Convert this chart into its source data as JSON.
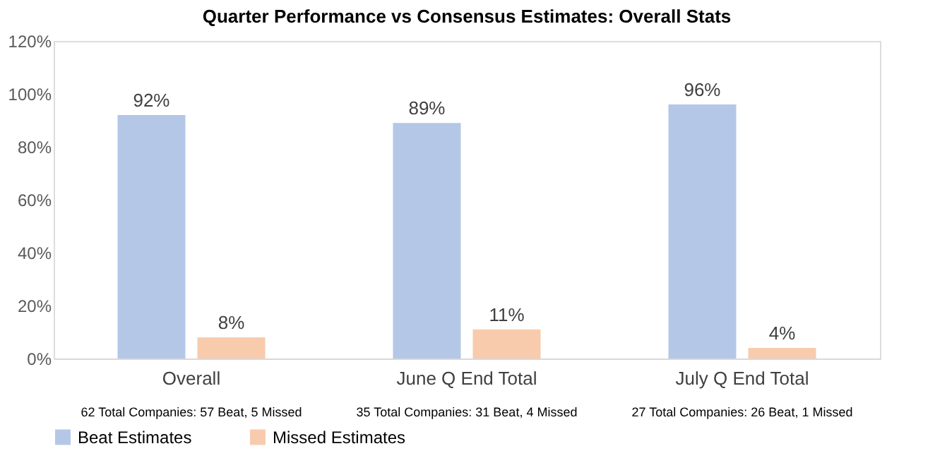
{
  "chart_data": {
    "type": "bar",
    "title": "Quarter Performance vs Consensus Estimates: Overall Stats",
    "categories": [
      "Overall",
      "June Q End Total",
      "July Q End Total"
    ],
    "series": [
      {
        "name": "Beat Estimates",
        "color": "#b4c7e7",
        "values": [
          92,
          89,
          96
        ],
        "value_labels": [
          "92%",
          "89%",
          "96%"
        ]
      },
      {
        "name": "Missed Estimates",
        "color": "#f8cbad",
        "values": [
          8,
          11,
          4
        ],
        "value_labels": [
          "8%",
          "11%",
          "4%"
        ]
      }
    ],
    "ylim": [
      0,
      120
    ],
    "yticks": [
      {
        "value": 0,
        "label": "0%"
      },
      {
        "value": 20,
        "label": "20%"
      },
      {
        "value": 40,
        "label": "40%"
      },
      {
        "value": 60,
        "label": "60%"
      },
      {
        "value": 80,
        "label": "80%"
      },
      {
        "value": 100,
        "label": "100%"
      },
      {
        "value": 120,
        "label": "120%"
      }
    ],
    "annotations": [
      "62 Total Companies: 57 Beat, 5 Missed",
      "35 Total Companies: 31 Beat, 4 Missed",
      "27 Total Companies: 26 Beat, 1 Missed"
    ],
    "grid": false,
    "legend": "bottom"
  }
}
